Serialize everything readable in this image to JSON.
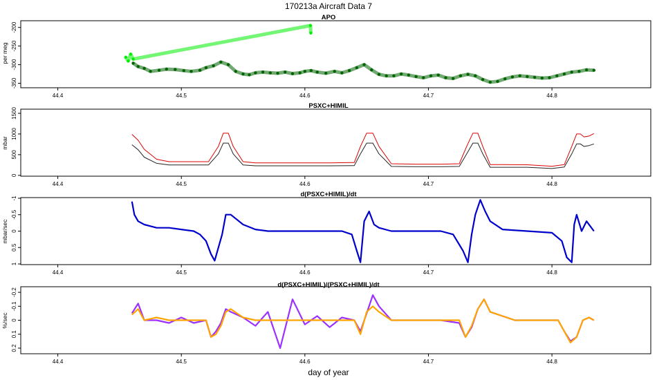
{
  "figure": {
    "title": "170213a   Aircraft Data 7",
    "xlabel": "day of year"
  },
  "chart_data": [
    {
      "type": "scatter",
      "title": "APO",
      "ylabel": "per meg",
      "xlim": [
        44.37,
        44.88
      ],
      "ylim": [
        -362,
        -182
      ],
      "x_ticks": [
        44.4,
        44.5,
        44.6,
        44.7,
        44.8
      ],
      "y_ticks": [
        -350,
        -300,
        -250,
        -200
      ],
      "y_reversed": false,
      "series": [
        {
          "color": "#00ee00",
          "x": [
            44.455,
            44.457,
            44.459,
            44.461,
            44.6045,
            44.6048
          ],
          "y": [
            -280,
            -290,
            -272,
            -285,
            -195,
            -215
          ]
        },
        {
          "color": "#006400",
          "x": [
            44.461,
            44.465,
            44.47,
            44.475,
            44.482,
            44.488,
            44.495,
            44.502,
            44.508,
            44.515,
            44.52,
            44.526,
            44.532,
            44.538,
            44.544,
            44.55,
            44.555,
            44.56,
            44.566,
            44.572,
            44.578,
            44.584,
            44.59,
            44.596,
            44.6,
            44.605,
            44.61,
            44.617,
            44.624,
            44.63,
            44.636,
            44.642,
            44.648,
            44.654,
            44.66,
            44.666,
            44.672,
            44.678,
            44.684,
            44.69,
            44.696,
            44.702,
            44.708,
            44.714,
            44.72,
            44.726,
            44.732,
            44.738,
            44.744,
            44.75,
            44.756,
            44.762,
            44.768,
            44.774,
            44.78,
            44.786,
            44.792,
            44.798,
            44.804,
            44.81,
            44.816,
            44.822,
            44.828,
            44.834
          ],
          "y": [
            -296,
            -305,
            -310,
            -318,
            -315,
            -312,
            -313,
            -316,
            -318,
            -315,
            -308,
            -303,
            -293,
            -300,
            -318,
            -325,
            -327,
            -322,
            -320,
            -322,
            -323,
            -320,
            -324,
            -322,
            -318,
            -316,
            -320,
            -323,
            -318,
            -322,
            -316,
            -308,
            -300,
            -314,
            -326,
            -330,
            -330,
            -325,
            -328,
            -332,
            -335,
            -330,
            -328,
            -335,
            -337,
            -330,
            -326,
            -330,
            -340,
            -347,
            -345,
            -338,
            -333,
            -330,
            -332,
            -334,
            -336,
            -335,
            -330,
            -325,
            -320,
            -318,
            -314,
            -315
          ]
        }
      ]
    },
    {
      "type": "line",
      "title": "PSXC+HIMIL",
      "ylabel": "mbar",
      "xlim": [
        44.37,
        44.88
      ],
      "ylim": [
        -20,
        1600
      ],
      "x_ticks": [
        44.4,
        44.5,
        44.6,
        44.7,
        44.8
      ],
      "y_ticks": [
        0,
        500,
        1000,
        1500
      ],
      "y_reversed": false,
      "series": [
        {
          "color": "#dd0000",
          "x": [
            44.46,
            44.465,
            44.47,
            44.48,
            44.49,
            44.5,
            44.51,
            44.522,
            44.53,
            44.534,
            44.538,
            44.542,
            44.55,
            44.56,
            44.58,
            44.6,
            44.62,
            44.64,
            44.645,
            44.65,
            44.655,
            44.66,
            44.67,
            44.69,
            44.71,
            44.725,
            44.731,
            44.736,
            44.74,
            44.744,
            44.75,
            44.76,
            44.78,
            44.8,
            44.81,
            44.816,
            44.82,
            44.823,
            44.826,
            44.83,
            44.834
          ],
          "y": [
            990,
            850,
            630,
            390,
            330,
            330,
            330,
            330,
            700,
            1020,
            1020,
            700,
            330,
            300,
            300,
            300,
            300,
            310,
            700,
            1020,
            1020,
            700,
            280,
            270,
            270,
            280,
            700,
            1020,
            1020,
            700,
            260,
            260,
            255,
            220,
            260,
            700,
            1000,
            1000,
            930,
            950,
            1010
          ]
        },
        {
          "color": "#222222",
          "x": [
            44.46,
            44.465,
            44.47,
            44.48,
            44.49,
            44.5,
            44.51,
            44.522,
            44.53,
            44.534,
            44.538,
            44.542,
            44.55,
            44.56,
            44.58,
            44.6,
            44.62,
            44.64,
            44.645,
            44.65,
            44.655,
            44.66,
            44.67,
            44.69,
            44.71,
            44.725,
            44.731,
            44.736,
            44.74,
            44.744,
            44.75,
            44.76,
            44.78,
            44.8,
            44.81,
            44.816,
            44.82,
            44.823,
            44.826,
            44.83,
            44.834
          ],
          "y": [
            740,
            620,
            440,
            290,
            250,
            250,
            250,
            250,
            520,
            780,
            780,
            520,
            250,
            230,
            230,
            230,
            230,
            235,
            520,
            780,
            780,
            520,
            215,
            210,
            210,
            215,
            520,
            780,
            780,
            520,
            195,
            195,
            195,
            165,
            200,
            520,
            760,
            760,
            700,
            720,
            760
          ]
        }
      ]
    },
    {
      "type": "line",
      "title": "d(PSXC+HIMIL)/dt",
      "ylabel": "mbar/sec",
      "xlim": [
        44.37,
        44.88
      ],
      "ylim": [
        -1.02,
        1.02
      ],
      "x_ticks": [
        44.4,
        44.5,
        44.6,
        44.7,
        44.8
      ],
      "y_ticks": [
        -1.0,
        -0.5,
        0.0,
        0.5,
        1.0
      ],
      "y_reversed": true,
      "series": [
        {
          "color": "#0000cc",
          "x": [
            44.46,
            44.462,
            44.465,
            44.47,
            44.48,
            44.49,
            44.5,
            44.51,
            44.515,
            44.52,
            44.524,
            44.527,
            44.53,
            44.533,
            44.536,
            44.54,
            44.55,
            44.56,
            44.57,
            44.58,
            44.59,
            44.6,
            44.61,
            44.62,
            44.63,
            44.638,
            44.642,
            44.645,
            44.648,
            44.652,
            44.656,
            44.66,
            44.67,
            44.69,
            44.71,
            44.72,
            44.728,
            44.732,
            44.735,
            44.738,
            44.742,
            44.746,
            44.75,
            44.76,
            44.78,
            44.8,
            44.808,
            44.812,
            44.816,
            44.818,
            44.82,
            44.824,
            44.828,
            44.834
          ],
          "y": [
            -0.9,
            -0.5,
            -0.3,
            -0.2,
            -0.1,
            -0.1,
            -0.05,
            0.0,
            0.1,
            0.3,
            0.7,
            0.9,
            0.5,
            0.1,
            -0.5,
            -0.5,
            -0.2,
            -0.05,
            0.0,
            0.0,
            0.0,
            0.0,
            0.0,
            0.0,
            0.0,
            0.1,
            0.6,
            0.95,
            -0.3,
            -0.6,
            -0.2,
            -0.1,
            0.0,
            0.0,
            0.0,
            0.1,
            0.6,
            0.95,
            0.1,
            -0.5,
            -0.95,
            -0.6,
            -0.3,
            -0.05,
            0.0,
            0.05,
            0.3,
            0.8,
            0.95,
            -0.2,
            -0.5,
            0.0,
            -0.3,
            0.0
          ]
        }
      ]
    },
    {
      "type": "line",
      "title": "d(PSXC+HIMIL)/(PSXC+HIMIL)/dt",
      "ylabel": "%/sec",
      "xlim": [
        44.37,
        44.88
      ],
      "ylim": [
        -0.24,
        0.24
      ],
      "x_ticks": [
        44.4,
        44.5,
        44.6,
        44.7,
        44.8
      ],
      "y_ticks": [
        -0.2,
        -0.1,
        0.0,
        0.1,
        0.2
      ],
      "y_reversed": true,
      "series": [
        {
          "color": "#9b30ff",
          "x": [
            44.46,
            44.465,
            44.47,
            44.48,
            44.49,
            44.5,
            44.51,
            44.52,
            44.524,
            44.528,
            44.532,
            44.536,
            44.54,
            44.55,
            44.56,
            44.57,
            44.58,
            44.59,
            44.6,
            44.61,
            44.62,
            44.63,
            44.64,
            44.645,
            44.65,
            44.655,
            44.66,
            44.67,
            44.69,
            44.71,
            44.725,
            44.73,
            44.735,
            44.74,
            44.745,
            44.75,
            44.77,
            44.79,
            44.805,
            44.81,
            44.815,
            44.82,
            44.825,
            44.83,
            44.834
          ],
          "y": [
            -0.05,
            -0.12,
            0.0,
            0.0,
            0.02,
            -0.02,
            0.02,
            0.0,
            0.12,
            0.08,
            0.02,
            -0.08,
            -0.06,
            -0.02,
            0.04,
            -0.06,
            0.2,
            -0.15,
            0.03,
            -0.03,
            0.05,
            -0.02,
            0.0,
            0.08,
            -0.05,
            -0.18,
            -0.1,
            0.0,
            0.0,
            0.0,
            0.02,
            0.12,
            0.05,
            -0.08,
            -0.15,
            -0.06,
            0.0,
            0.0,
            0.0,
            0.08,
            0.15,
            0.12,
            0.0,
            -0.02,
            0.0
          ]
        },
        {
          "color": "#ffa500",
          "x": [
            44.46,
            44.465,
            44.47,
            44.48,
            44.49,
            44.5,
            44.51,
            44.52,
            44.524,
            44.528,
            44.532,
            44.536,
            44.54,
            44.55,
            44.56,
            44.57,
            44.58,
            44.59,
            44.6,
            44.61,
            44.62,
            44.63,
            44.64,
            44.645,
            44.65,
            44.655,
            44.66,
            44.67,
            44.69,
            44.71,
            44.725,
            44.73,
            44.735,
            44.74,
            44.745,
            44.75,
            44.77,
            44.79,
            44.805,
            44.81,
            44.815,
            44.82,
            44.825,
            44.83,
            44.834
          ],
          "y": [
            -0.04,
            -0.08,
            0.0,
            -0.02,
            0.0,
            0.0,
            0.0,
            0.0,
            0.12,
            0.1,
            0.04,
            -0.06,
            -0.08,
            -0.02,
            0.0,
            0.0,
            0.0,
            0.0,
            0.0,
            0.0,
            0.0,
            0.0,
            0.0,
            0.1,
            -0.06,
            -0.1,
            -0.06,
            0.0,
            0.0,
            0.0,
            0.0,
            0.12,
            0.04,
            -0.08,
            -0.15,
            -0.06,
            0.0,
            0.0,
            0.0,
            0.08,
            0.16,
            0.12,
            0.0,
            -0.02,
            0.0
          ]
        }
      ]
    }
  ]
}
